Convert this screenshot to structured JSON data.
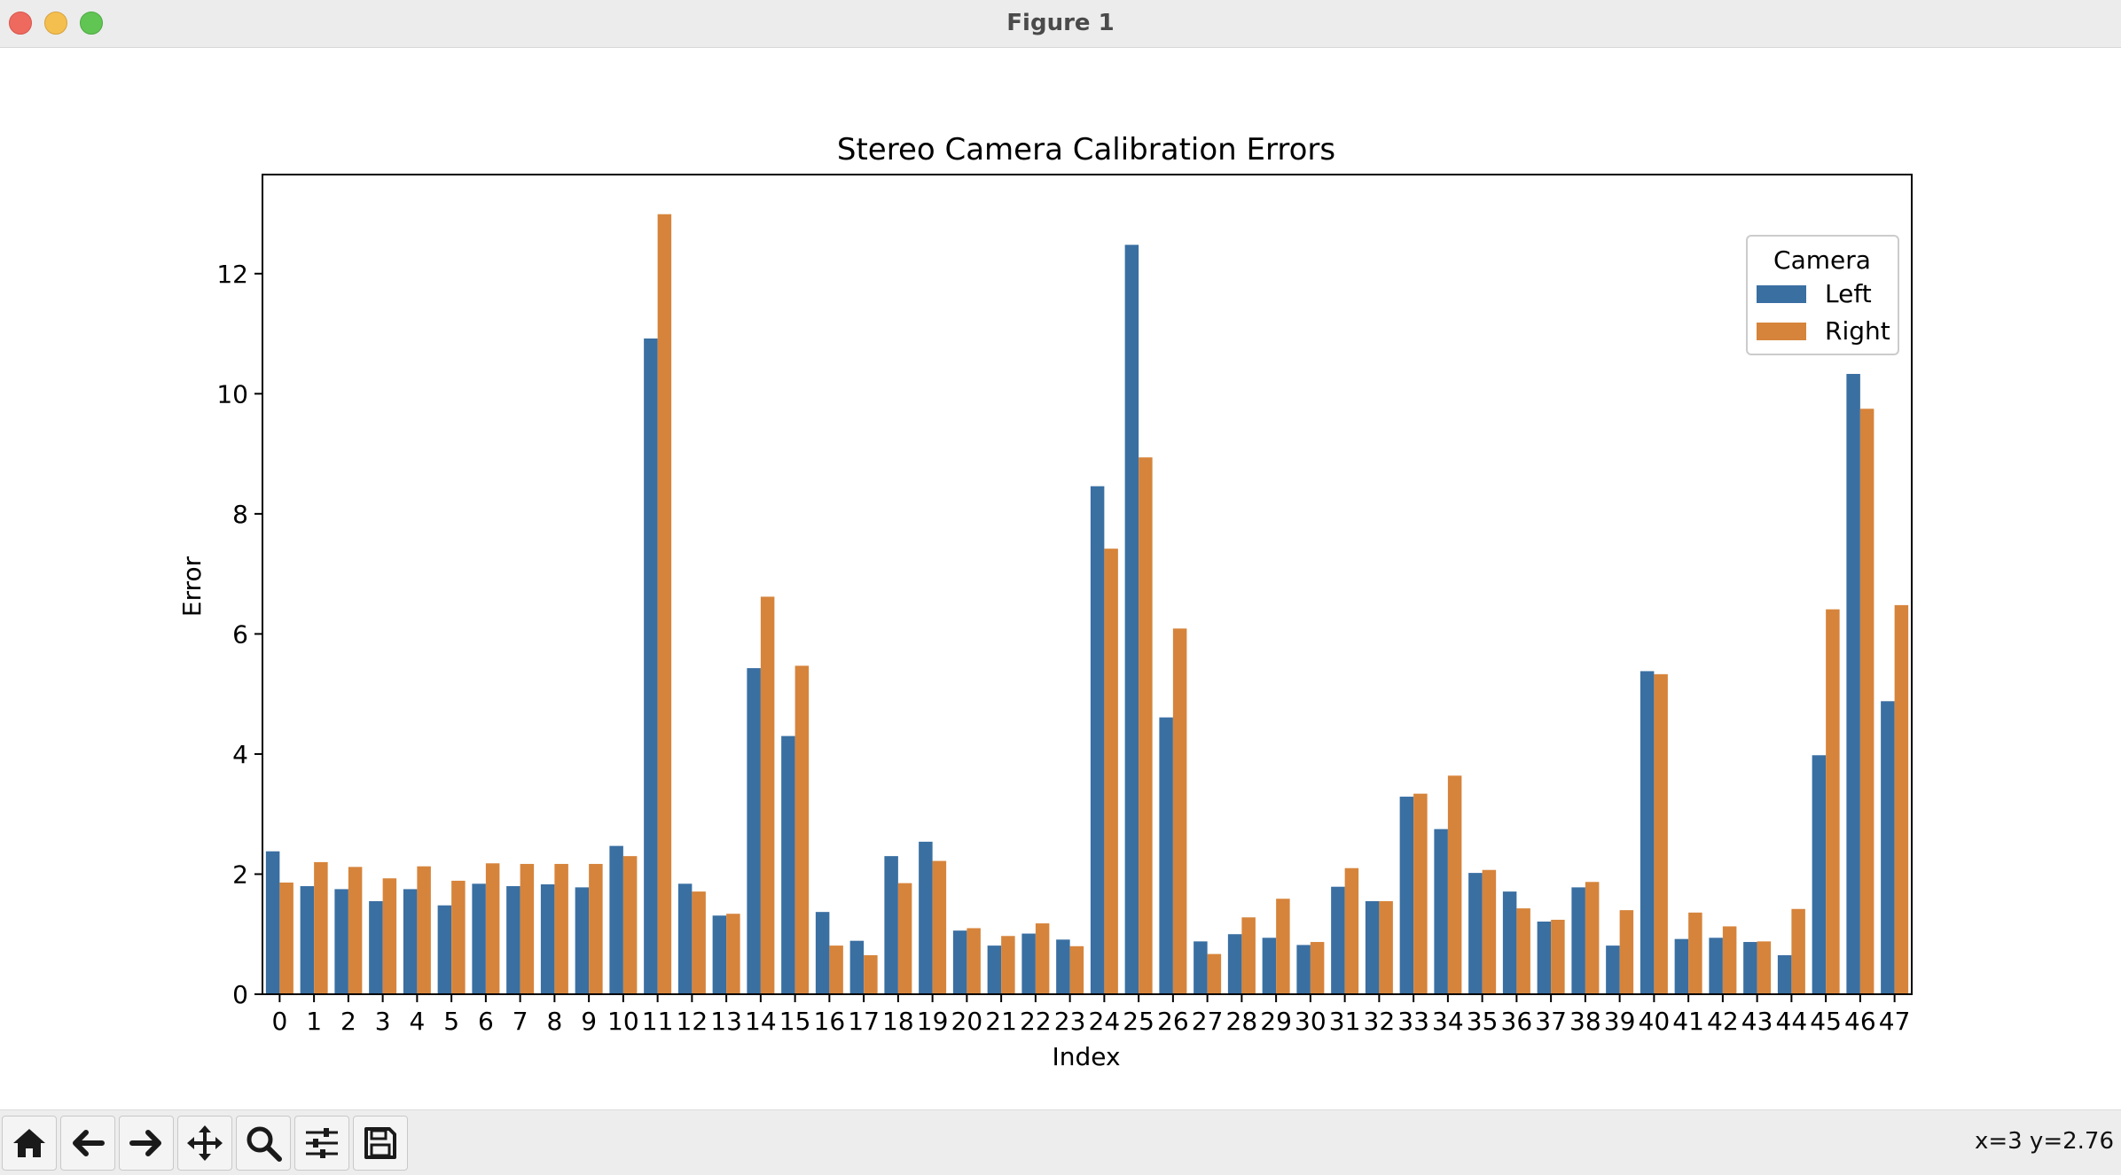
{
  "window": {
    "title": "Figure 1"
  },
  "toolbar": {
    "buttons": [
      {
        "name": "home-button",
        "icon": "home-icon"
      },
      {
        "name": "back-button",
        "icon": "arrow-left-icon"
      },
      {
        "name": "forward-button",
        "icon": "arrow-right-icon"
      },
      {
        "name": "pan-button",
        "icon": "move-icon"
      },
      {
        "name": "zoom-button",
        "icon": "search-icon"
      },
      {
        "name": "configure-subplots-button",
        "icon": "sliders-icon"
      },
      {
        "name": "save-button",
        "icon": "save-icon"
      }
    ],
    "coords": "x=3 y=2.76"
  },
  "chart_data": {
    "type": "bar",
    "title": "Stereo Camera Calibration Errors",
    "xlabel": "Index",
    "ylabel": "Error",
    "ylim": [
      0,
      13.65
    ],
    "yticks": [
      0,
      2,
      4,
      6,
      8,
      10,
      12
    ],
    "grid": false,
    "legend": {
      "title": "Camera",
      "placement": "top-right"
    },
    "categories": [
      "0",
      "1",
      "2",
      "3",
      "4",
      "5",
      "6",
      "7",
      "8",
      "9",
      "10",
      "11",
      "12",
      "13",
      "14",
      "15",
      "16",
      "17",
      "18",
      "19",
      "20",
      "21",
      "22",
      "23",
      "24",
      "25",
      "26",
      "27",
      "28",
      "29",
      "30",
      "31",
      "32",
      "33",
      "34",
      "35",
      "36",
      "37",
      "38",
      "39",
      "40",
      "41",
      "42",
      "43",
      "44",
      "45",
      "46",
      "47"
    ],
    "series": [
      {
        "name": "Left",
        "color": "#3a6fa2",
        "values": [
          2.38,
          1.8,
          1.75,
          1.55,
          1.75,
          1.48,
          1.84,
          1.8,
          1.83,
          1.78,
          2.47,
          10.92,
          1.84,
          1.31,
          5.43,
          4.3,
          1.37,
          0.89,
          2.3,
          2.54,
          1.06,
          0.81,
          1.01,
          0.91,
          8.46,
          12.48,
          4.61,
          0.88,
          1.0,
          0.94,
          0.82,
          1.79,
          1.55,
          3.29,
          2.75,
          2.02,
          1.71,
          1.21,
          1.78,
          0.81,
          5.38,
          0.92,
          0.94,
          0.87,
          0.65,
          3.98,
          10.33,
          4.88
        ]
      },
      {
        "name": "Right",
        "color": "#d6843b",
        "values": [
          1.86,
          2.2,
          2.12,
          1.93,
          2.13,
          1.89,
          2.18,
          2.17,
          2.17,
          2.17,
          2.3,
          12.99,
          1.71,
          1.34,
          6.62,
          5.47,
          0.81,
          0.65,
          1.85,
          2.22,
          1.1,
          0.97,
          1.18,
          0.8,
          7.42,
          8.94,
          6.09,
          0.67,
          1.28,
          1.59,
          0.87,
          2.1,
          1.55,
          3.34,
          3.64,
          2.07,
          1.43,
          1.24,
          1.87,
          1.4,
          5.33,
          1.36,
          1.13,
          0.88,
          1.42,
          6.41,
          9.75,
          6.48
        ]
      }
    ]
  }
}
